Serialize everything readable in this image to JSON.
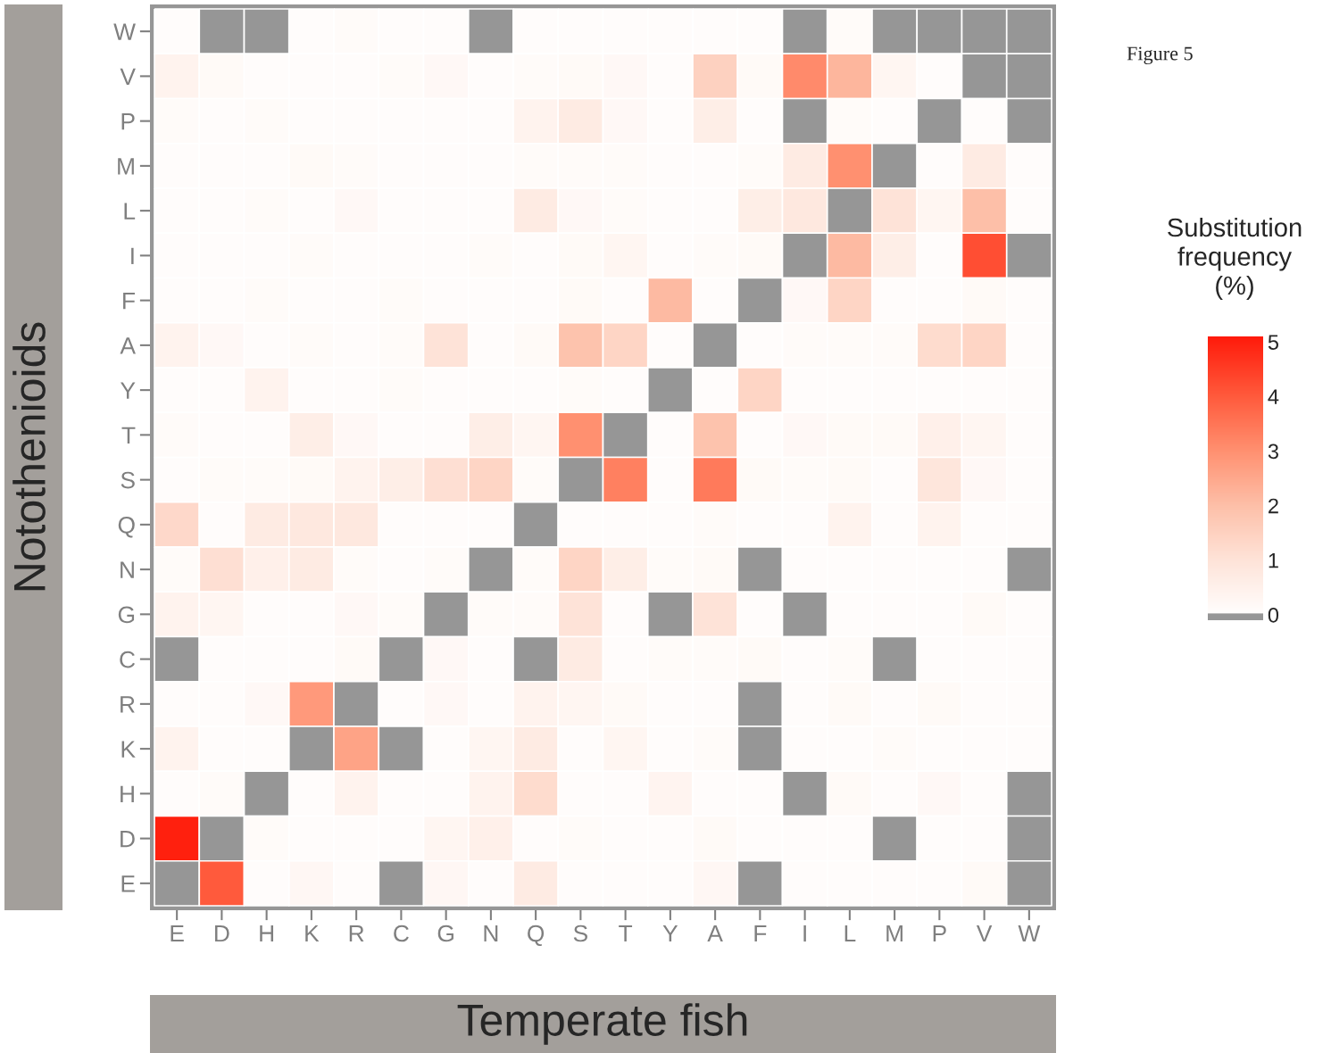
{
  "chart_data": {
    "type": "heatmap",
    "xlabel": "Temperate fish",
    "ylabel": "Notothenioids",
    "clabel": "Substitution\nfrequency\n(%)",
    "annotations": [
      "Figure 5"
    ],
    "categories": [
      "E",
      "D",
      "H",
      "K",
      "R",
      "C",
      "G",
      "N",
      "Q",
      "S",
      "T",
      "Y",
      "A",
      "F",
      "I",
      "L",
      "M",
      "P",
      "V",
      "W"
    ],
    "y_categories": [
      "W",
      "V",
      "P",
      "M",
      "L",
      "I",
      "F",
      "A",
      "Y",
      "T",
      "S",
      "Q",
      "N",
      "G",
      "C",
      "R",
      "K",
      "H",
      "D",
      "E"
    ],
    "cells": [
      [
        0.05,
        0,
        0,
        0.05,
        0.1,
        0.05,
        0.05,
        0,
        0.05,
        0.05,
        0.05,
        0.05,
        0.05,
        0.05,
        0,
        0.1,
        0,
        0,
        0,
        0
      ],
      [
        0.4,
        0.15,
        0.05,
        0.05,
        0.05,
        0.1,
        0.2,
        0.05,
        0.1,
        0.15,
        0.2,
        0.05,
        1.5,
        0.15,
        3.1,
        2.2,
        0.3,
        0.05,
        0,
        0
      ],
      [
        0.1,
        0.05,
        0.1,
        0.05,
        0.05,
        0.05,
        0.05,
        0.05,
        0.4,
        0.7,
        0.2,
        0.05,
        0.6,
        0.05,
        0,
        0.1,
        0.05,
        0,
        0.05,
        0
      ],
      [
        0.05,
        0.05,
        0.05,
        0.15,
        0.1,
        0.05,
        0.05,
        0.05,
        0.1,
        0.1,
        0.1,
        0.05,
        0.05,
        0.1,
        0.7,
        3.0,
        0,
        0.05,
        0.7,
        0.05
      ],
      [
        0.05,
        0.05,
        0.1,
        0.05,
        0.2,
        0.05,
        0.05,
        0.05,
        0.7,
        0.2,
        0.1,
        0.05,
        0.05,
        0.6,
        0.8,
        0,
        1.0,
        0.3,
        2.0,
        0.05
      ],
      [
        0.05,
        0.05,
        0.05,
        0.1,
        0.05,
        0.05,
        0.05,
        0.1,
        0.05,
        0.15,
        0.3,
        0.05,
        0.1,
        0.15,
        0,
        2.1,
        0.6,
        0.05,
        4.2,
        0
      ],
      [
        0.05,
        0.05,
        0.1,
        0.05,
        0.05,
        0.1,
        0.05,
        0.05,
        0.05,
        0.15,
        0.05,
        2.1,
        0.05,
        0,
        0.2,
        1.4,
        0.05,
        0.05,
        0.15,
        0.05
      ],
      [
        0.4,
        0.2,
        0.05,
        0.1,
        0.05,
        0.1,
        1.0,
        0.05,
        0.15,
        1.9,
        1.4,
        0.05,
        0,
        0.05,
        0.1,
        0.1,
        0.1,
        1.2,
        1.4,
        0.05
      ],
      [
        0.05,
        0.05,
        0.4,
        0.05,
        0.05,
        0.1,
        0.05,
        0.05,
        0.05,
        0.1,
        0.05,
        0,
        0.05,
        1.4,
        0.05,
        0.05,
        0.05,
        0.05,
        0.05,
        0.05
      ],
      [
        0.1,
        0.05,
        0.05,
        0.6,
        0.2,
        0.05,
        0.05,
        0.6,
        0.3,
        3.0,
        0,
        0.05,
        1.9,
        0.05,
        0.2,
        0.15,
        0.15,
        0.5,
        0.3,
        0.05
      ],
      [
        0.05,
        0.1,
        0.1,
        0.15,
        0.4,
        0.6,
        1.1,
        1.4,
        0.1,
        0,
        3.3,
        0.05,
        3.4,
        0.15,
        0.1,
        0.15,
        0.05,
        0.9,
        0.2,
        0.05
      ],
      [
        1.3,
        0.05,
        0.7,
        0.8,
        0.8,
        0.05,
        0.05,
        0.05,
        0,
        0.05,
        0.05,
        0.05,
        0.1,
        0.05,
        0.05,
        0.4,
        0.05,
        0.4,
        0.05,
        0.05
      ],
      [
        0.1,
        1.1,
        0.5,
        0.7,
        0.1,
        0.05,
        0.1,
        0,
        0.1,
        1.4,
        0.6,
        0.1,
        0.15,
        0,
        0.05,
        0.05,
        0.05,
        0.05,
        0.05,
        0
      ],
      [
        0.4,
        0.3,
        0.05,
        0.05,
        0.2,
        0.1,
        0,
        0.1,
        0.1,
        1.0,
        0.05,
        0,
        1.0,
        0.05,
        0,
        0.05,
        0.05,
        0.05,
        0.15,
        0.05
      ],
      [
        0,
        0.05,
        0.05,
        0.05,
        0.15,
        0,
        0.2,
        0.05,
        0,
        0.7,
        0.05,
        0.1,
        0.1,
        0.15,
        0.05,
        0.1,
        0,
        0.05,
        0.05,
        0.05
      ],
      [
        0.05,
        0.05,
        0.2,
        2.8,
        0,
        0.05,
        0.2,
        0.05,
        0.4,
        0.3,
        0.15,
        0.05,
        0.05,
        0,
        0.05,
        0.15,
        0.05,
        0.15,
        0.05,
        0.05
      ],
      [
        0.4,
        0.05,
        0.05,
        0,
        2.6,
        0,
        0.05,
        0.3,
        0.7,
        0.05,
        0.3,
        0.05,
        0.1,
        0,
        0.05,
        0.05,
        0.1,
        0.05,
        0.05,
        0.05
      ],
      [
        0.05,
        0.1,
        0,
        0.05,
        0.4,
        0.05,
        0.05,
        0.4,
        1.2,
        0.05,
        0.05,
        0.35,
        0.05,
        0.05,
        0,
        0.15,
        0.05,
        0.2,
        0.05,
        0
      ],
      [
        5.0,
        0,
        0.1,
        0.05,
        0.05,
        0.05,
        0.3,
        0.5,
        0.05,
        0.1,
        0.05,
        0.05,
        0.15,
        0.05,
        0.05,
        0.05,
        0,
        0.05,
        0.05,
        0
      ],
      [
        0,
        4.0,
        0.05,
        0.25,
        0.05,
        0,
        0.25,
        0.05,
        0.7,
        0.05,
        0.05,
        0.05,
        0.25,
        0,
        0.05,
        0.05,
        0.05,
        0.05,
        0.15,
        0
      ]
    ],
    "clim": [
      -0.1,
      5.1
    ],
    "cticks": [
      0,
      1,
      2,
      3,
      4,
      5
    ]
  }
}
